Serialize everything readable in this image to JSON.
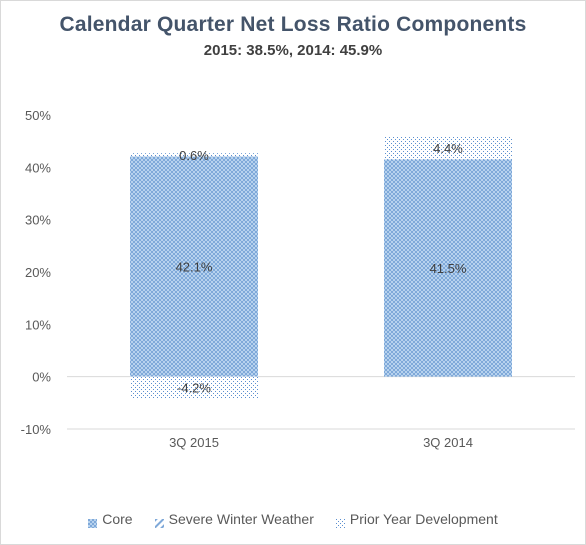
{
  "chart_data": {
    "type": "bar",
    "stacked": true,
    "title": "Calendar Quarter Net Loss Ratio Components",
    "subtitle": "2015: 38.5%, 2014: 45.9%",
    "categories": [
      "3Q 2015",
      "3Q 2014"
    ],
    "series": [
      {
        "name": "Core",
        "values": [
          42.1,
          41.5
        ],
        "labels": [
          "42.1%",
          "41.5%"
        ],
        "color": "#9dc3e6"
      },
      {
        "name": "Severe Winter Weather",
        "values": [
          0,
          0
        ],
        "labels": [
          "",
          ""
        ],
        "color": "#9dc3e6"
      },
      {
        "name": "Prior Year Development",
        "values": [
          0.6,
          4.4
        ],
        "labels": [
          "0.6%",
          "4.4%"
        ],
        "color": "#9dc3e6"
      }
    ],
    "negative_segments": [
      {
        "category": "3Q 2015",
        "series": "Prior Year Development",
        "value": -4.2,
        "label": "-4.2%"
      }
    ],
    "ylim": [
      -10,
      50
    ],
    "yticks": [
      -10,
      0,
      10,
      20,
      30,
      40,
      50
    ],
    "ytick_labels": [
      "-10%",
      "0%",
      "10%",
      "20%",
      "30%",
      "40%",
      "50%"
    ],
    "grid": false,
    "legend_position": "bottom"
  }
}
